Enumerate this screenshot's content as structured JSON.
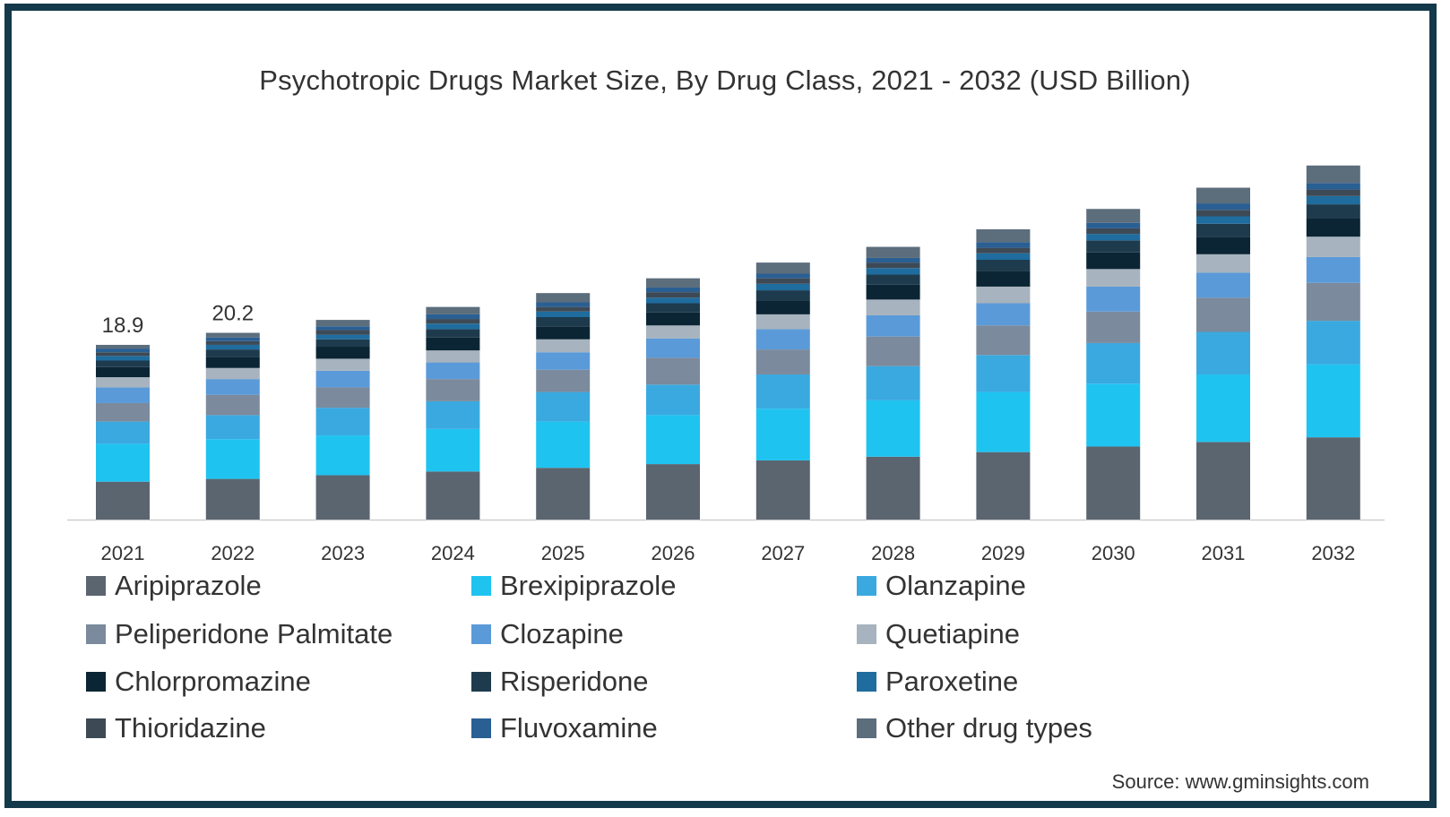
{
  "chart_data": {
    "type": "bar",
    "stacked": true,
    "title": "Psychotropic Drugs Market Size, By Drug Class, 2021 - 2032 (USD Billion)",
    "categories": [
      "2021",
      "2022",
      "2023",
      "2024",
      "2025",
      "2026",
      "2027",
      "2028",
      "2029",
      "2030",
      "2031",
      "2032"
    ],
    "totals": [
      18.9,
      20.2,
      21.6,
      23.0,
      24.5,
      26.1,
      27.8,
      29.5,
      31.4,
      33.6,
      35.9,
      38.3
    ],
    "total_labels": [
      "18.9",
      "20.2"
    ],
    "series": [
      {
        "name": "Aripiprazole",
        "color": "#5b6570",
        "values": [
          4.1,
          4.4,
          4.8,
          5.2,
          5.6,
          6.0,
          6.4,
          6.8,
          7.3,
          7.9,
          8.4,
          8.9
        ]
      },
      {
        "name": "Brexipiprazole",
        "color": "#1fc3f0",
        "values": [
          4.1,
          4.3,
          4.3,
          4.6,
          5.0,
          5.3,
          5.6,
          6.1,
          6.5,
          6.8,
          7.3,
          7.9
        ]
      },
      {
        "name": "Olanzapine",
        "color": "#3aa9e0",
        "values": [
          2.4,
          2.6,
          3.0,
          3.0,
          3.2,
          3.3,
          3.7,
          3.7,
          4.0,
          4.4,
          4.6,
          4.7
        ]
      },
      {
        "name": "Peliperidone Palmitate",
        "color": "#7b8a9c",
        "values": [
          2.0,
          2.2,
          2.2,
          2.4,
          2.4,
          2.9,
          2.7,
          3.2,
          3.2,
          3.4,
          3.7,
          4.1
        ]
      },
      {
        "name": "Clozapine",
        "color": "#5b9ad8",
        "values": [
          1.7,
          1.7,
          1.8,
          1.8,
          1.9,
          2.1,
          2.2,
          2.3,
          2.4,
          2.7,
          2.7,
          2.8
        ]
      },
      {
        "name": "Quetiapine",
        "color": "#a7b3be",
        "values": [
          1.1,
          1.2,
          1.3,
          1.3,
          1.4,
          1.4,
          1.6,
          1.7,
          1.8,
          1.9,
          2.0,
          2.2
        ]
      },
      {
        "name": "Chlorpromazine",
        "color": "#0b2534",
        "values": [
          1.1,
          1.2,
          1.3,
          1.4,
          1.4,
          1.4,
          1.5,
          1.6,
          1.7,
          1.8,
          1.9,
          2.0
        ]
      },
      {
        "name": "Risperidone",
        "color": "#1e3b4e",
        "values": [
          0.7,
          0.8,
          0.8,
          0.9,
          1.0,
          1.0,
          1.1,
          1.1,
          1.2,
          1.3,
          1.4,
          1.5
        ]
      },
      {
        "name": "Paroxetine",
        "color": "#1f6c9e",
        "values": [
          0.5,
          0.5,
          0.5,
          0.6,
          0.6,
          0.6,
          0.7,
          0.7,
          0.7,
          0.7,
          0.8,
          0.9
        ]
      },
      {
        "name": "Thioridazine",
        "color": "#3d4a56",
        "values": [
          0.4,
          0.4,
          0.5,
          0.5,
          0.5,
          0.6,
          0.6,
          0.6,
          0.6,
          0.6,
          0.7,
          0.7
        ]
      },
      {
        "name": "Fluvoxamine",
        "color": "#2a5f93",
        "values": [
          0.4,
          0.4,
          0.4,
          0.5,
          0.5,
          0.5,
          0.5,
          0.5,
          0.6,
          0.6,
          0.7,
          0.7
        ]
      },
      {
        "name": "Other drug types",
        "color": "#5c6d7c",
        "values": [
          0.4,
          0.5,
          0.7,
          0.8,
          1.0,
          1.0,
          1.2,
          1.2,
          1.4,
          1.5,
          1.7,
          1.9
        ]
      }
    ],
    "ylim": [
      0,
      40
    ],
    "grid": false,
    "legend_position": "bottom",
    "source": "Source: www.gminsights.com"
  }
}
